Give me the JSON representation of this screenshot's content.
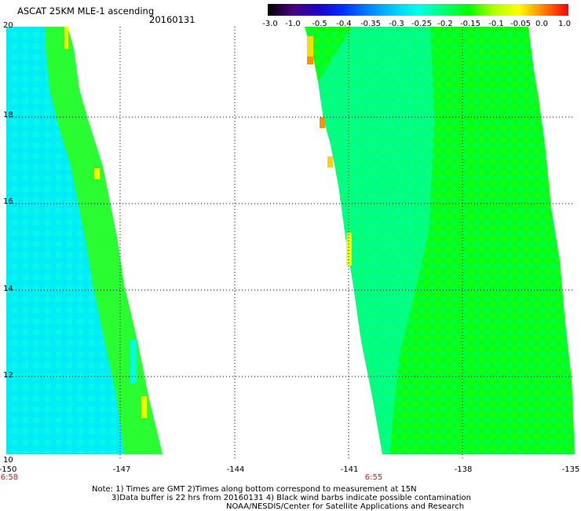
{
  "header": {
    "title": "ASCAT 25KM MLE-1 ascending",
    "date": "20160131"
  },
  "colorbar": {
    "labels": [
      "-3.0",
      "-1.0",
      "-0.5",
      "-0.4",
      "-0.35",
      "-0.3",
      "-0.25",
      "-0.2",
      "-0.15",
      "-0.1",
      "-0.05",
      "0.0",
      "1.0"
    ],
    "colors": [
      "#000000",
      "#4a0080",
      "#2000c0",
      "#0030ff",
      "#0080ff",
      "#00c8ff",
      "#00ffe6",
      "#00ff7a",
      "#00ff00",
      "#b0ff00",
      "#ffff00",
      "#ff8000",
      "#ff0000"
    ]
  },
  "map": {
    "lon_labels": [
      "-150",
      "-147",
      "-144",
      "-141",
      "-138",
      "-135"
    ],
    "lat_labels": [
      "20",
      "18",
      "16",
      "14",
      "12",
      "10"
    ],
    "swaths": [
      {
        "name": "western-swath",
        "time": "6:58"
      },
      {
        "name": "eastern-swath",
        "time": "6:55"
      }
    ]
  },
  "notes": {
    "line1": "Note: 1) Times are GMT 2)Times along bottom correspond to measurement at 15N",
    "line2": "3)Data buffer is 22 hrs from 20160131 4) Black wind barbs indicate possible contamination",
    "line3": "NOAA/NESDIS/Center for Satellite Applications and Research"
  }
}
